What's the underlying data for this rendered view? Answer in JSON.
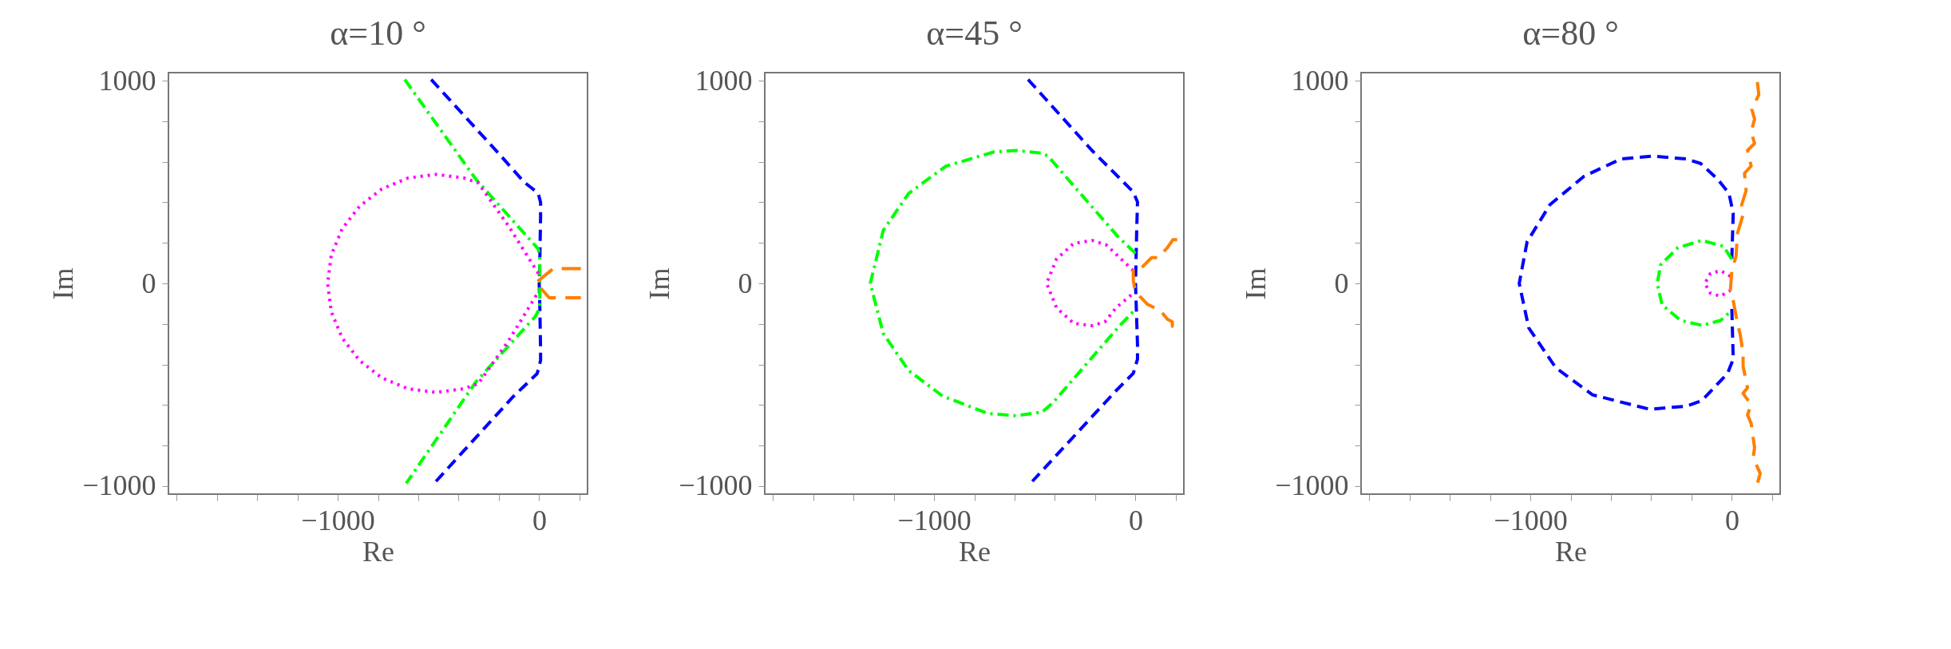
{
  "chart_data": [
    {
      "type": "line",
      "title": "α=10 °",
      "xlabel": "Re",
      "ylabel": "Im",
      "xlim": [
        -1840,
        240
      ],
      "ylim": [
        -1040,
        1040
      ],
      "xticks": [
        {
          "value": -1800,
          "label": null
        },
        {
          "value": -1600,
          "label": null
        },
        {
          "value": -1400,
          "label": null
        },
        {
          "value": -1200,
          "label": null
        },
        {
          "value": -1000,
          "label": "−1000"
        },
        {
          "value": -800,
          "label": null
        },
        {
          "value": -600,
          "label": null
        },
        {
          "value": -400,
          "label": null
        },
        {
          "value": -200,
          "label": null
        },
        0,
        {
          "value": 200,
          "label": null
        }
      ],
      "yticks": [
        {
          "value": -1000,
          "label": "−1000"
        },
        {
          "value": -800,
          "label": null
        },
        {
          "value": -600,
          "label": null
        },
        {
          "value": -400,
          "label": null
        },
        {
          "value": -200,
          "label": null
        },
        0,
        {
          "value": 200,
          "label": null
        },
        {
          "value": 400,
          "label": null
        },
        {
          "value": 600,
          "label": null
        },
        {
          "value": 800,
          "label": null
        },
        1000
      ],
      "series": [
        {
          "color": "#0000ff",
          "line_style": "dashed",
          "x": [
            -536,
            -200,
            -75,
            -5,
            7,
            7,
            3,
            0,
            3,
            7,
            7,
            -10,
            -130,
            -515
          ],
          "values": [
            1006,
            640,
            500,
            445,
            400,
            330,
            100,
            0,
            -100,
            -330,
            -380,
            -445,
            -560,
            -980
          ]
        },
        {
          "color": "#00ff00",
          "line_style": "dashdot",
          "x": [
            -667,
            -315,
            -4,
            3,
            3,
            -4,
            -18,
            -315,
            -660
          ],
          "values": [
            1006,
            515,
            169,
            120,
            -100,
            -134,
            -162,
            -487,
            -987
          ]
        },
        {
          "color": "#ff00ff",
          "line_style": "dotted",
          "x": [
            -4,
            -150,
            -302,
            -373,
            -512,
            -651,
            -781,
            -892,
            -978,
            -1032,
            -1050,
            -1032,
            -978,
            -892,
            -781,
            -651,
            -512,
            -373,
            -302,
            -150,
            -4
          ],
          "values": [
            49,
            280,
            495,
            520,
            538,
            520,
            466,
            380,
            269,
            139,
            0,
            -139,
            -269,
            -380,
            -466,
            -520,
            -538,
            -520,
            -495,
            -280,
            -42
          ]
        },
        {
          "color": "#ff7f00",
          "line_style": "longdash",
          "x": [
            207,
            70,
            -16,
            50,
            207
          ],
          "values": [
            73,
            73,
            3,
            -71,
            -71
          ]
        }
      ]
    },
    {
      "type": "line",
      "title": "α=45 °",
      "xlabel": "Re",
      "ylabel": "Im",
      "xlim": [
        -1840,
        240
      ],
      "ylim": [
        -1040,
        1040
      ],
      "xticks": [
        {
          "value": -1800,
          "label": null
        },
        {
          "value": -1600,
          "label": null
        },
        {
          "value": -1400,
          "label": null
        },
        {
          "value": -1200,
          "label": null
        },
        {
          "value": -1000,
          "label": "−1000"
        },
        {
          "value": -800,
          "label": null
        },
        {
          "value": -600,
          "label": null
        },
        {
          "value": -400,
          "label": null
        },
        {
          "value": -200,
          "label": null
        },
        0,
        {
          "value": 200,
          "label": null
        }
      ],
      "yticks": [
        {
          "value": -1000,
          "label": "−1000"
        },
        {
          "value": -800,
          "label": null
        },
        {
          "value": -600,
          "label": null
        },
        {
          "value": -400,
          "label": null
        },
        {
          "value": -200,
          "label": null
        },
        0,
        {
          "value": 200,
          "label": null
        },
        {
          "value": 400,
          "label": null
        },
        {
          "value": 600,
          "label": null
        },
        {
          "value": 800,
          "label": null
        },
        1000
      ],
      "series": [
        {
          "color": "#0000ff",
          "line_style": "dashed",
          "x": [
            -533,
            -216,
            -82,
            -11,
            10,
            6,
            0,
            10,
            10,
            -11,
            -96,
            -512
          ],
          "values": [
            1006,
            656,
            522,
            451,
            402,
            261,
            0,
            -303,
            -374,
            -444,
            -529,
            -977
          ]
        },
        {
          "color": "#00ff00",
          "line_style": "dashdot",
          "x": [
            0,
            -89,
            -237,
            -434,
            -463,
            -590,
            -702,
            -942,
            -1126,
            -1252,
            -1316,
            -1252,
            -1126,
            -956,
            -731,
            -590,
            -463,
            -406,
            -223,
            -75,
            0
          ],
          "values": [
            148,
            233,
            402,
            628,
            642,
            656,
            649,
            578,
            444,
            261,
            0,
            -247,
            -430,
            -557,
            -642,
            -653,
            -635,
            -585,
            -374,
            -205,
            -127
          ]
        },
        {
          "color": "#ff00ff",
          "line_style": "dotted",
          "x": [
            -11,
            -145,
            -216,
            -307,
            -392,
            -441,
            -392,
            -307,
            -216,
            -152,
            -96,
            -11
          ],
          "values": [
            63,
            190,
            212,
            197,
            120,
            0,
            -120,
            -197,
            -209,
            -190,
            -120,
            -49
          ]
        },
        {
          "color": "#ff7f00",
          "line_style": "longdash",
          "x": [
            207,
            186,
            158,
            113,
            80,
            24,
            -11,
            -11,
            0,
            59,
            123,
            158,
            183,
            183,
            207
          ],
          "values": [
            216,
            216,
            176,
            127,
            127,
            71,
            71,
            14,
            -42,
            -103,
            -134,
            -176,
            -190,
            -212,
            -212
          ]
        }
      ]
    },
    {
      "type": "line",
      "title": "α=80 °",
      "xlabel": "Re",
      "ylabel": "Im",
      "xlim": [
        -1840,
        240
      ],
      "ylim": [
        -1040,
        1040
      ],
      "xticks": [
        {
          "value": -1800,
          "label": null
        },
        {
          "value": -1600,
          "label": null
        },
        {
          "value": -1400,
          "label": null
        },
        {
          "value": -1200,
          "label": null
        },
        {
          "value": -1000,
          "label": "−1000"
        },
        {
          "value": -800,
          "label": null
        },
        {
          "value": -600,
          "label": null
        },
        {
          "value": -400,
          "label": null
        },
        {
          "value": -200,
          "label": null
        },
        0,
        {
          "value": 200,
          "label": null
        }
      ],
      "yticks": [
        {
          "value": -1000,
          "label": "−1000"
        },
        {
          "value": -800,
          "label": null
        },
        {
          "value": -600,
          "label": null
        },
        {
          "value": -400,
          "label": null
        },
        {
          "value": -200,
          "label": null
        },
        0,
        {
          "value": 200,
          "label": null
        },
        {
          "value": 400,
          "label": null
        },
        {
          "value": 600,
          "label": null
        },
        {
          "value": 800,
          "label": null
        },
        1000
      ],
      "series": [
        {
          "color": "#0000ff",
          "line_style": "dashed",
          "x": [
            0,
            7,
            -14,
            -71,
            -155,
            -226,
            -395,
            -550,
            -733,
            -903,
            -1016,
            -1055,
            -1008,
            -874,
            -691,
            -409,
            -226,
            -148,
            -21,
            7,
            0
          ],
          "values": [
            120,
            346,
            444,
            515,
            592,
            614,
            628,
            614,
            529,
            388,
            205,
            0,
            -219,
            -416,
            -550,
            -621,
            -606,
            -578,
            -444,
            -374,
            -120
          ]
        },
        {
          "color": "#00ff00",
          "line_style": "dashdot",
          "x": [
            0,
            -42,
            -148,
            -268,
            -353,
            -370,
            -346,
            -254,
            -148,
            -56,
            0
          ],
          "values": [
            120,
            183,
            212,
            176,
            92,
            0,
            -106,
            -183,
            -207,
            -183,
            -134
          ]
        },
        {
          "color": "#ff00ff",
          "line_style": "dotted",
          "x": [
            -7,
            -56,
            -106,
            -134,
            -106,
            -56,
            -7
          ],
          "values": [
            35,
            63,
            49,
            0,
            -49,
            -63,
            -35
          ]
        },
        {
          "color": "#ff7f00",
          "line_style": "longdash",
          "x": [
            127,
            134,
            99,
            113,
            96,
            113,
            78,
            96,
            63,
            71,
            49,
            56,
            28,
            21,
            0,
            -7,
            7,
            28,
            42,
            56,
            56,
            78,
            56,
            96,
            78,
            96,
            113,
            106,
            141,
            124
          ],
          "values": [
            994,
            931,
            860,
            811,
            748,
            691,
            656,
            579,
            543,
            458,
            388,
            339,
            247,
            134,
            63,
            -35,
            -85,
            -197,
            -254,
            -346,
            -409,
            -515,
            -543,
            -599,
            -649,
            -691,
            -811,
            -860,
            -938,
            -997
          ]
        }
      ]
    }
  ]
}
